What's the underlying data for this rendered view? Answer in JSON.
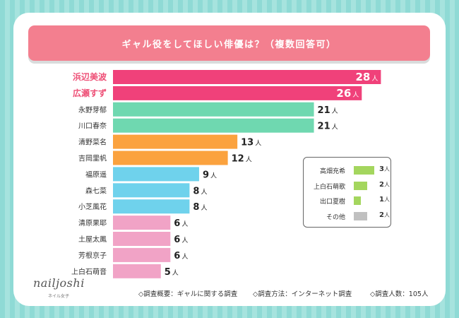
{
  "title": "ギャル役をしてほしい俳優は？（複数回答可）",
  "brand": {
    "logo": "nailjoshi",
    "sub": "ネイル女子"
  },
  "footer": [
    "◇調査概要：ギャルに関する調査",
    "◇調査方法：インターネット調査",
    "◇調査人数：105人"
  ],
  "chart_data": {
    "type": "bar",
    "orientation": "horizontal",
    "title": "ギャル役をしてほしい俳優は？（複数回答可）",
    "unit": "人",
    "xlim": [
      0,
      30
    ],
    "categories": [
      "浜辺美波",
      "広瀬すず",
      "永野芽郁",
      "川口春奈",
      "清野菜名",
      "吉岡里帆",
      "福原遥",
      "森七菜",
      "小芝風花",
      "清原果耶",
      "土屋太鳳",
      "芳根京子",
      "上白石萌音"
    ],
    "values": [
      28,
      26,
      21,
      21,
      13,
      12,
      9,
      8,
      8,
      6,
      6,
      6,
      5
    ],
    "colors": [
      "#f0417a",
      "#f0417a",
      "#6fd8b0",
      "#6fd8b0",
      "#fba23e",
      "#fba23e",
      "#6fd2ec",
      "#6fd2ec",
      "#6fd2ec",
      "#f1a3c6",
      "#f1a3c6",
      "#f1a3c6",
      "#f1a3c6"
    ],
    "highlight": [
      true,
      true,
      false,
      false,
      false,
      false,
      false,
      false,
      false,
      false,
      false,
      false,
      false
    ],
    "legend_box": {
      "categories": [
        "高畑充希",
        "上白石萌歌",
        "出口夏樹",
        "その他"
      ],
      "values": [
        3,
        2,
        1,
        2
      ],
      "colors": [
        "#a4d65e",
        "#a4d65e",
        "#a4d65e",
        "#c0c0c0"
      ]
    }
  }
}
